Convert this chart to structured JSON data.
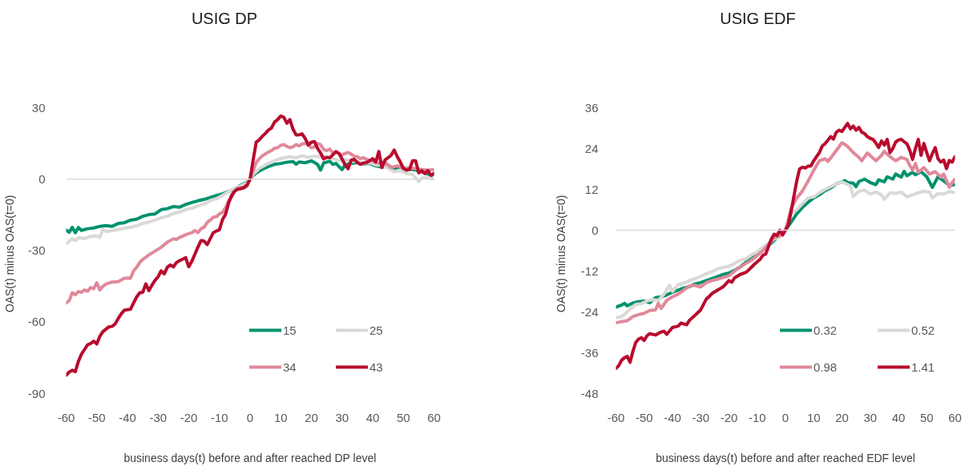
{
  "chart_data": [
    {
      "type": "line",
      "title": "USIG DP",
      "xlabel": "business days(t) before and after reached DP level",
      "ylabel": "OAS(t)  minus  OAS(t=0)",
      "xlim": [
        -60,
        60
      ],
      "xticks": [
        -60,
        -50,
        -40,
        -30,
        -20,
        -10,
        0,
        10,
        20,
        30,
        40,
        50,
        60
      ],
      "ylim": [
        -90,
        30
      ],
      "yticks": [
        -90,
        -60,
        -30,
        0,
        30
      ],
      "legend": "bottom right",
      "ref_lines": [
        {
          "axis": "y",
          "value": 0,
          "color": "#d9d9d9"
        }
      ],
      "series": [
        {
          "name": "15",
          "color": "#00916e",
          "x": [
            -60,
            -59,
            -58,
            -57,
            -56,
            -55,
            -53,
            -51,
            -49,
            -47,
            -45,
            -43,
            -41,
            -39,
            -37,
            -35,
            -33,
            -31,
            -29,
            -27,
            -25,
            -23,
            -21,
            -19,
            -17,
            -15,
            -13,
            -11,
            -9,
            -7,
            -5,
            -3,
            -1,
            0,
            1,
            2,
            3,
            4,
            6,
            8,
            10,
            12,
            14,
            15,
            16,
            18,
            20,
            22,
            23,
            24,
            26,
            27,
            28,
            30,
            31,
            33,
            35,
            37,
            39,
            41,
            43,
            45,
            47,
            49,
            51,
            53,
            55,
            57,
            59,
            60
          ],
          "values": [
            -21.4,
            -22.3,
            -20.2,
            -22.5,
            -20.3,
            -21.5,
            -20.8,
            -20.5,
            -19.8,
            -19.5,
            -19.8,
            -18.6,
            -18.3,
            -17.2,
            -16.8,
            -15.6,
            -14.9,
            -14.6,
            -12.8,
            -12.4,
            -11.5,
            -11.8,
            -10.6,
            -9.8,
            -9.1,
            -8.5,
            -7.7,
            -6.9,
            -6.2,
            -5.2,
            -4.3,
            -2.5,
            -1.3,
            0,
            1.5,
            2.6,
            3.4,
            4.1,
            5.3,
            6.2,
            6.6,
            7.1,
            7.4,
            6.3,
            7.2,
            6.9,
            7.7,
            6.2,
            3.8,
            6.8,
            7.5,
            6.2,
            6.6,
            4.0,
            6.0,
            6.6,
            7.0,
            6.4,
            6.6,
            5.6,
            5.0,
            5.8,
            4.4,
            5.2,
            4.4,
            4.0,
            3.6,
            2.6,
            1.6,
            2.0
          ]
        },
        {
          "name": "25",
          "color": "#d9d9d6",
          "x": [
            -60,
            -59,
            -58,
            -57,
            -56,
            -54,
            -52,
            -50,
            -49,
            -48,
            -47,
            -45,
            -43,
            -41,
            -39,
            -37,
            -35,
            -33,
            -31,
            -29,
            -27,
            -25,
            -23,
            -21,
            -19,
            -17,
            -15,
            -13,
            -11,
            -9,
            -7,
            -5,
            -3,
            -1,
            0,
            1,
            3,
            5,
            7,
            9,
            11,
            13,
            15,
            17,
            19,
            21,
            23,
            25,
            27,
            29,
            31,
            33,
            35,
            37,
            39,
            41,
            43,
            45,
            47,
            49,
            51,
            53,
            55,
            56,
            58,
            60
          ],
          "values": [
            -27,
            -26.2,
            -25.0,
            -25.8,
            -24.6,
            -24.9,
            -24.0,
            -23.8,
            -24.5,
            -21.0,
            -22.0,
            -21.6,
            -21.2,
            -20.6,
            -20.2,
            -19.6,
            -18.6,
            -18.0,
            -17.2,
            -16.2,
            -15.6,
            -14.4,
            -13.8,
            -12.8,
            -12.2,
            -11.2,
            -10.4,
            -9.0,
            -8.2,
            -6.8,
            -5.2,
            -3.8,
            -2.8,
            -1.6,
            0,
            2.0,
            4.5,
            6.0,
            7.2,
            8.3,
            9.0,
            9.4,
            9.0,
            9.8,
            9.2,
            9.7,
            9.3,
            9.0,
            8.6,
            7.8,
            8.2,
            7.4,
            7.6,
            6.6,
            6.9,
            6.0,
            5.8,
            4.6,
            3.2,
            3.6,
            2.4,
            2.0,
            -1.0,
            0.4,
            0.8,
            0.0
          ]
        },
        {
          "name": "34",
          "color": "#e0899a",
          "x": [
            -60,
            -59,
            -58,
            -57,
            -56,
            -55,
            -54,
            -53,
            -52,
            -51,
            -50,
            -49,
            -48,
            -47,
            -45,
            -43,
            -41,
            -40,
            -39,
            -38,
            -37,
            -36,
            -35,
            -33,
            -31,
            -29,
            -27,
            -25,
            -24,
            -23,
            -21,
            -19,
            -18,
            -17,
            -16,
            -15,
            -14,
            -13,
            -12,
            -11,
            -10,
            -9,
            -8,
            -7,
            -6,
            -5,
            -4,
            -3,
            -2,
            -1,
            0,
            1,
            2,
            3,
            4,
            5,
            6,
            7,
            8,
            9,
            10,
            11,
            12,
            13,
            14,
            15,
            16,
            17,
            18,
            19,
            20,
            21,
            22,
            23,
            24,
            25,
            26,
            27,
            28,
            29,
            30,
            31,
            32,
            33,
            34,
            35,
            36,
            37,
            38,
            40,
            42,
            44,
            46,
            48,
            50,
            52,
            54,
            56,
            58,
            60
          ],
          "values": [
            -52.0,
            -51.0,
            -47.7,
            -48.5,
            -47.2,
            -47.5,
            -46.5,
            -47.0,
            -45.5,
            -46.0,
            -43.5,
            -46.5,
            -45.0,
            -44.0,
            -43.2,
            -43.0,
            -41.6,
            -41.5,
            -41.6,
            -38.5,
            -37.0,
            -35.0,
            -33.7,
            -31.8,
            -30.2,
            -28.6,
            -26.5,
            -25.0,
            -25.3,
            -24.5,
            -23.3,
            -22.5,
            -21.6,
            -22.4,
            -20.8,
            -20.2,
            -18.2,
            -17.2,
            -16.0,
            -15.8,
            -14.6,
            -14.0,
            -12.0,
            -9.0,
            -7.6,
            -5.0,
            -3.8,
            -3.5,
            -3.8,
            -3.0,
            0,
            3.5,
            7.0,
            8.5,
            9.8,
            10.6,
            11.4,
            12.0,
            13.0,
            13.2,
            14.2,
            14.5,
            13.8,
            13.2,
            13.6,
            14.5,
            14.0,
            14.8,
            15.0,
            14.3,
            13.2,
            13.6,
            15.0,
            14.5,
            12.5,
            12.0,
            12.6,
            11.0,
            11.5,
            10.6,
            10.2,
            10.8,
            11.2,
            10.5,
            9.6,
            9.4,
            8.6,
            9.0,
            8.3,
            7.6,
            6.6,
            7.2,
            4.9,
            5.6,
            4.6,
            4.8,
            4.4,
            4.0,
            3.8,
            4.0
          ]
        },
        {
          "name": "43",
          "color": "#b80b2e",
          "x": [
            -60,
            -59,
            -58,
            -57,
            -56,
            -55,
            -54,
            -53,
            -52,
            -51,
            -50,
            -49,
            -48,
            -47,
            -46,
            -45,
            -44,
            -43,
            -42,
            -41,
            -40,
            -39,
            -38,
            -37,
            -36,
            -35,
            -34,
            -33,
            -32,
            -31,
            -30,
            -29,
            -28,
            -27,
            -26,
            -25,
            -24,
            -23,
            -22,
            -21,
            -20,
            -19,
            -18,
            -17,
            -16,
            -15,
            -14,
            -13,
            -12,
            -11,
            -10,
            -9,
            -8,
            -7,
            -6,
            -5,
            -4,
            -3,
            -2,
            -1,
            0,
            1,
            2,
            3,
            4,
            5,
            6,
            7,
            8,
            9,
            10,
            11,
            12,
            13,
            14,
            15,
            16,
            17,
            18,
            19,
            20,
            21,
            22,
            23,
            24,
            25,
            26,
            27,
            28,
            29,
            30,
            31,
            32,
            33,
            34,
            35,
            36,
            37,
            38,
            39,
            40,
            41,
            42,
            43,
            44,
            45,
            46,
            47,
            48,
            49,
            50,
            51,
            52,
            53,
            54,
            55,
            56,
            57,
            58,
            59,
            60
          ],
          "values": [
            -82.3,
            -81.0,
            -80.2,
            -80.8,
            -76.5,
            -73.5,
            -71.5,
            -69.5,
            -69.0,
            -68.0,
            -69.2,
            -66.0,
            -64.0,
            -63.0,
            -62.0,
            -61.8,
            -60.8,
            -58.5,
            -56.5,
            -55.0,
            -54.8,
            -54.6,
            -52.0,
            -49.5,
            -47.7,
            -47.5,
            -44.0,
            -46.8,
            -44.5,
            -42.5,
            -41.0,
            -38.5,
            -39.8,
            -37.0,
            -36.0,
            -36.8,
            -35.0,
            -34.2,
            -33.6,
            -33.0,
            -36.8,
            -34.5,
            -31.5,
            -28.5,
            -25.8,
            -26.0,
            -27.5,
            -25.0,
            -22.5,
            -21.8,
            -21.2,
            -17.0,
            -14.8,
            -10.0,
            -6.8,
            -5.0,
            -4.2,
            -4.0,
            -3.5,
            -2.5,
            0,
            8.0,
            15.5,
            16.5,
            18.0,
            19.2,
            20.6,
            21.5,
            24.0,
            25.0,
            26.5,
            26.0,
            23.5,
            25.0,
            21.0,
            18.6,
            18.6,
            19.0,
            17.0,
            14.4,
            15.5,
            15.8,
            13.0,
            11.0,
            8.5,
            9.2,
            9.0,
            10.2,
            11.6,
            10.8,
            8.5,
            6.0,
            4.4,
            8.0,
            8.3,
            7.0,
            6.2,
            6.8,
            7.0,
            7.7,
            8.6,
            7.2,
            11.6,
            4.9,
            8.0,
            9.0,
            10.0,
            12.2,
            9.5,
            7.2,
            4.5,
            3.8,
            4.0,
            7.7,
            7.7,
            2.7,
            3.5,
            2.4,
            3.6,
            1.6,
            2.5
          ]
        }
      ]
    },
    {
      "type": "line",
      "title": "USIG EDF",
      "xlabel": "business days(t) before and after reached EDF level",
      "ylabel": "OAS(t)  minus  OAS(t=0)",
      "xlim": [
        -60,
        60
      ],
      "xticks": [
        -60,
        -50,
        -40,
        -30,
        -20,
        -10,
        0,
        10,
        20,
        30,
        40,
        50,
        60
      ],
      "ylim": [
        -48,
        36
      ],
      "yticks": [
        -48,
        -36,
        -24,
        -12,
        0,
        12,
        24,
        36
      ],
      "legend": "bottom right",
      "ref_lines": [
        {
          "axis": "y",
          "value": 0,
          "color": "#d9d9d9"
        }
      ],
      "series": [
        {
          "name": "0.32",
          "color": "#00916e",
          "x": [
            -60,
            -58,
            -57,
            -56,
            -54,
            -52,
            -50,
            -48,
            -46,
            -44,
            -42,
            -40,
            -38,
            -36,
            -34,
            -32,
            -30,
            -28,
            -26,
            -24,
            -22,
            -20,
            -18,
            -16,
            -14,
            -12,
            -10,
            -8,
            -6,
            -4,
            -2,
            0,
            2,
            4,
            6,
            8,
            10,
            12,
            14,
            16,
            18,
            20,
            21,
            22,
            24,
            25,
            26,
            28,
            30,
            32,
            33,
            35,
            36,
            38,
            39,
            41,
            42,
            43,
            45,
            46,
            48,
            50,
            52,
            54,
            56,
            58,
            60
          ],
          "values": [
            -22.6,
            -22.0,
            -21.5,
            -22.2,
            -21.4,
            -21.0,
            -20.8,
            -21.3,
            -19.8,
            -19.6,
            -19.0,
            -18.2,
            -17.6,
            -17.0,
            -16.6,
            -15.8,
            -15.4,
            -14.8,
            -14.2,
            -13.6,
            -13.0,
            -12.6,
            -11.8,
            -10.8,
            -9.4,
            -8.4,
            -6.9,
            -5.6,
            -4.5,
            -3.0,
            -1.4,
            0,
            2.4,
            4.8,
            6.7,
            8.2,
            9.5,
            10.4,
            11.6,
            12.4,
            13.6,
            14.2,
            14.6,
            14.0,
            13.8,
            12.8,
            14.3,
            15.0,
            14.0,
            13.4,
            14.8,
            14.2,
            15.7,
            15.0,
            16.5,
            15.6,
            17.3,
            16.0,
            17.0,
            16.3,
            17.2,
            15.7,
            12.6,
            15.7,
            14.5,
            13.2,
            13.4
          ]
        },
        {
          "name": "0.52",
          "color": "#d9d9d6",
          "x": [
            -60,
            -58,
            -57,
            -55,
            -53,
            -51,
            -49,
            -47,
            -45,
            -43,
            -41,
            -40,
            -38,
            -36,
            -34,
            -32,
            -30,
            -28,
            -26,
            -24,
            -22,
            -20,
            -18,
            -16,
            -14,
            -12,
            -10,
            -8,
            -6,
            -4,
            -2,
            0,
            2,
            4,
            6,
            8,
            10,
            12,
            14,
            16,
            18,
            20,
            22,
            23,
            24,
            26,
            28,
            30,
            32,
            34,
            35,
            37,
            39,
            41,
            43,
            45,
            47,
            49,
            51,
            52,
            54,
            56,
            58,
            60
          ],
          "values": [
            -25.7,
            -25.4,
            -24.8,
            -23.2,
            -21.8,
            -21.6,
            -20.8,
            -20.4,
            -20.6,
            -18.8,
            -16.2,
            -18.0,
            -16.0,
            -15.6,
            -14.8,
            -14.2,
            -13.6,
            -12.8,
            -12.2,
            -11.4,
            -10.9,
            -10.6,
            -9.8,
            -8.8,
            -8.4,
            -7.2,
            -6.4,
            -5.0,
            -3.8,
            -2.6,
            -2.0,
            0,
            4.8,
            6.0,
            7.8,
            9.5,
            9.8,
            11.0,
            12.0,
            12.8,
            13.6,
            14.2,
            13.4,
            13.0,
            9.9,
            11.4,
            11.8,
            10.6,
            11.2,
            10.4,
            9.1,
            11.0,
            10.8,
            11.2,
            9.8,
            10.4,
            11.0,
            11.4,
            11.2,
            9.5,
            10.8,
            10.6,
            11.4,
            11.0
          ]
        },
        {
          "name": "0.98",
          "color": "#e0899a",
          "x": [
            -60,
            -58,
            -56,
            -54,
            -52,
            -50,
            -48,
            -46,
            -45,
            -44,
            -42,
            -40,
            -38,
            -36,
            -34,
            -32,
            -30,
            -28,
            -26,
            -24,
            -22,
            -20,
            -18,
            -16,
            -14,
            -12,
            -10,
            -8,
            -6,
            -4,
            -2,
            0,
            2,
            4,
            6,
            8,
            10,
            12,
            14,
            15,
            16,
            18,
            20,
            21,
            22,
            24,
            26,
            27,
            29,
            31,
            32,
            34,
            35,
            37,
            39,
            41,
            43,
            44,
            45,
            46,
            47,
            49,
            51,
            53,
            55,
            56,
            58,
            59,
            60
          ],
          "values": [
            -27.2,
            -26.9,
            -26.6,
            -25.4,
            -24.8,
            -24.4,
            -23.6,
            -23.4,
            -21.5,
            -23.0,
            -20.6,
            -19.6,
            -18.8,
            -17.6,
            -16.4,
            -16.2,
            -16.7,
            -15.4,
            -14.8,
            -14.4,
            -13.9,
            -13.4,
            -12.0,
            -10.8,
            -9.8,
            -8.8,
            -7.4,
            -6.0,
            -4.2,
            -2.2,
            -1.6,
            0,
            6.3,
            9.5,
            11.5,
            14.4,
            17.6,
            20.4,
            21.0,
            20.2,
            21.2,
            23.4,
            25.7,
            25.2,
            24.6,
            22.8,
            21.4,
            20.4,
            22.7,
            21.2,
            20.4,
            22.0,
            23.2,
            21.6,
            20.4,
            21.4,
            20.8,
            19.0,
            17.7,
            19.6,
            17.0,
            18.4,
            16.5,
            17.2,
            15.6,
            16.5,
            12.6,
            14.0,
            15.0
          ]
        },
        {
          "name": "1.41",
          "color": "#b80b2e",
          "x": [
            -60,
            -59,
            -58,
            -57,
            -56,
            -55,
            -54,
            -53,
            -52,
            -51,
            -50,
            -49,
            -48,
            -46,
            -44,
            -43,
            -42,
            -40,
            -38,
            -37,
            -35,
            -34,
            -32,
            -30,
            -29,
            -28,
            -27,
            -26,
            -24,
            -23,
            -22,
            -20,
            -19,
            -18,
            -16,
            -14,
            -13,
            -11,
            -9,
            -8,
            -7,
            -5,
            -4,
            -3,
            -2,
            -1,
            0,
            1,
            2,
            3,
            4,
            5,
            6,
            7,
            8,
            9,
            10,
            11,
            12,
            13,
            14,
            15,
            16,
            17,
            18,
            19,
            20,
            21,
            22,
            23,
            24,
            25,
            26,
            27,
            28,
            29,
            30,
            31,
            32,
            33,
            34,
            35,
            36,
            37,
            38,
            39,
            40,
            41,
            42,
            43,
            44,
            45,
            46,
            47,
            48,
            49,
            50,
            51,
            52,
            53,
            54,
            55,
            56,
            57,
            58,
            59,
            60
          ],
          "values": [
            -40.6,
            -39.8,
            -38.2,
            -37.5,
            -37.1,
            -38.8,
            -35.6,
            -33.0,
            -32.0,
            -31.6,
            -32.4,
            -31.0,
            -30.4,
            -30.8,
            -29.9,
            -29.7,
            -30.6,
            -28.6,
            -28.2,
            -27.3,
            -27.8,
            -26.5,
            -25.0,
            -23.4,
            -21.8,
            -20.2,
            -19.5,
            -18.6,
            -17.6,
            -17.1,
            -16.6,
            -14.8,
            -15.3,
            -14.0,
            -13.0,
            -12.4,
            -11.7,
            -10.0,
            -8.6,
            -7.4,
            -7.0,
            -2.6,
            -1.2,
            -1.6,
            0.0,
            -1.4,
            0,
            1.5,
            5.5,
            10.0,
            14.5,
            18.0,
            18.5,
            18.3,
            18.8,
            18.9,
            20.4,
            21.6,
            22.8,
            24.7,
            25.4,
            26.4,
            27.5,
            26.8,
            28.8,
            29.4,
            29.0,
            30.2,
            31.4,
            29.8,
            30.6,
            29.4,
            30.2,
            28.8,
            28.4,
            27.5,
            27.0,
            26.7,
            25.6,
            24.3,
            26.2,
            25.0,
            26.7,
            22.8,
            24.0,
            25.9,
            26.5,
            26.7,
            26.0,
            25.4,
            23.5,
            20.8,
            24.0,
            26.7,
            22.0,
            25.5,
            22.8,
            20.4,
            22.5,
            24.3,
            21.0,
            20.0,
            20.6,
            18.1,
            20.5,
            20.0,
            21.6
          ]
        }
      ]
    }
  ]
}
